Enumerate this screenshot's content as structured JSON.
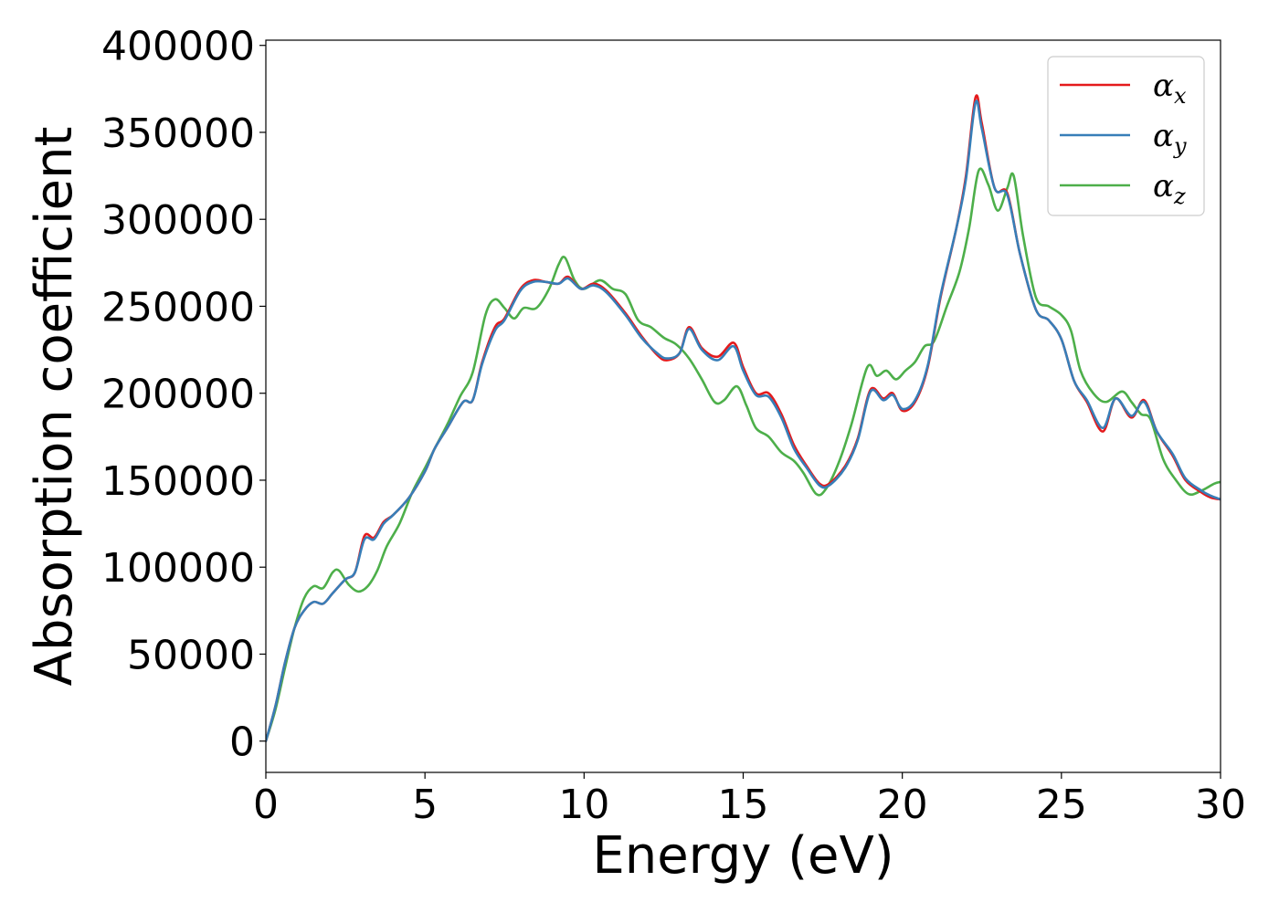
{
  "chart_data": {
    "type": "line",
    "xlabel": "Energy (eV)",
    "ylabel": "Absorption coefficient",
    "xlim": [
      0,
      30
    ],
    "ylim": [
      -18000,
      403000
    ],
    "xticks": [
      0,
      5,
      10,
      15,
      20,
      25,
      30
    ],
    "xtick_labels": [
      "0",
      "5",
      "10",
      "15",
      "20",
      "25",
      "30"
    ],
    "yticks": [
      0,
      50000,
      100000,
      150000,
      200000,
      250000,
      300000,
      350000,
      400000
    ],
    "ytick_labels": [
      "0",
      "50000",
      "100000",
      "150000",
      "200000",
      "250000",
      "300000",
      "350000",
      "400000"
    ],
    "grid": false,
    "legend_position": "top-right",
    "series": [
      {
        "name": "αx",
        "symbol": "α",
        "subscript": "x",
        "color": "#e41a1c",
        "points": [
          [
            0,
            0
          ],
          [
            0.3,
            20000
          ],
          [
            0.6,
            45000
          ],
          [
            0.9,
            65000
          ],
          [
            1.2,
            75000
          ],
          [
            1.5,
            80000
          ],
          [
            1.8,
            79000
          ],
          [
            2.1,
            85000
          ],
          [
            2.5,
            93000
          ],
          [
            2.8,
            97000
          ],
          [
            3.1,
            118000
          ],
          [
            3.4,
            117000
          ],
          [
            3.7,
            126000
          ],
          [
            4.0,
            130000
          ],
          [
            4.5,
            140000
          ],
          [
            5.0,
            155000
          ],
          [
            5.3,
            168000
          ],
          [
            5.7,
            180000
          ],
          [
            6.2,
            195000
          ],
          [
            6.5,
            196000
          ],
          [
            6.8,
            218000
          ],
          [
            7.2,
            238000
          ],
          [
            7.5,
            243000
          ],
          [
            8.0,
            260000
          ],
          [
            8.4,
            265000
          ],
          [
            8.8,
            264000
          ],
          [
            9.2,
            263000
          ],
          [
            9.5,
            267000
          ],
          [
            9.9,
            260000
          ],
          [
            10.3,
            263000
          ],
          [
            10.7,
            259000
          ],
          [
            11.3,
            246000
          ],
          [
            11.8,
            233000
          ],
          [
            12.3,
            222000
          ],
          [
            12.6,
            219000
          ],
          [
            13.0,
            223000
          ],
          [
            13.3,
            238000
          ],
          [
            13.7,
            226000
          ],
          [
            14.2,
            221000
          ],
          [
            14.7,
            229000
          ],
          [
            15.0,
            215000
          ],
          [
            15.4,
            200000
          ],
          [
            15.8,
            200000
          ],
          [
            16.2,
            188000
          ],
          [
            16.6,
            170000
          ],
          [
            17.0,
            158000
          ],
          [
            17.4,
            148000
          ],
          [
            17.7,
            148000
          ],
          [
            18.2,
            158000
          ],
          [
            18.6,
            174000
          ],
          [
            19.0,
            202000
          ],
          [
            19.4,
            197000
          ],
          [
            19.7,
            200000
          ],
          [
            20.0,
            190000
          ],
          [
            20.4,
            195000
          ],
          [
            20.8,
            215000
          ],
          [
            21.2,
            255000
          ],
          [
            21.7,
            295000
          ],
          [
            22.0,
            325000
          ],
          [
            22.3,
            370000
          ],
          [
            22.5,
            355000
          ],
          [
            22.9,
            318000
          ],
          [
            23.3,
            315000
          ],
          [
            23.7,
            280000
          ],
          [
            24.2,
            248000
          ],
          [
            24.6,
            242000
          ],
          [
            25.0,
            231000
          ],
          [
            25.4,
            207000
          ],
          [
            25.8,
            195000
          ],
          [
            26.3,
            178000
          ],
          [
            26.7,
            197000
          ],
          [
            27.2,
            186000
          ],
          [
            27.6,
            196000
          ],
          [
            28.0,
            178000
          ],
          [
            28.5,
            164000
          ],
          [
            28.9,
            150000
          ],
          [
            29.4,
            143000
          ],
          [
            29.7,
            140000
          ],
          [
            30,
            139000
          ]
        ]
      },
      {
        "name": "αy",
        "symbol": "α",
        "subscript": "y",
        "color": "#377eb8",
        "points": [
          [
            0,
            0
          ],
          [
            0.3,
            20000
          ],
          [
            0.6,
            45000
          ],
          [
            0.9,
            65000
          ],
          [
            1.2,
            75000
          ],
          [
            1.5,
            80000
          ],
          [
            1.8,
            79000
          ],
          [
            2.1,
            85000
          ],
          [
            2.5,
            93000
          ],
          [
            2.8,
            97000
          ],
          [
            3.1,
            116000
          ],
          [
            3.4,
            116000
          ],
          [
            3.7,
            125000
          ],
          [
            4.0,
            130000
          ],
          [
            4.5,
            140000
          ],
          [
            5.0,
            155000
          ],
          [
            5.3,
            168000
          ],
          [
            5.7,
            180000
          ],
          [
            6.2,
            195000
          ],
          [
            6.5,
            196000
          ],
          [
            6.8,
            217000
          ],
          [
            7.2,
            236000
          ],
          [
            7.5,
            242000
          ],
          [
            8.0,
            259000
          ],
          [
            8.4,
            264000
          ],
          [
            8.8,
            264000
          ],
          [
            9.2,
            263000
          ],
          [
            9.5,
            266000
          ],
          [
            9.9,
            260000
          ],
          [
            10.3,
            262000
          ],
          [
            10.7,
            258000
          ],
          [
            11.3,
            245000
          ],
          [
            11.8,
            232000
          ],
          [
            12.3,
            223000
          ],
          [
            12.6,
            220000
          ],
          [
            13.0,
            223000
          ],
          [
            13.3,
            237000
          ],
          [
            13.7,
            225000
          ],
          [
            14.2,
            219000
          ],
          [
            14.7,
            227000
          ],
          [
            15.0,
            213000
          ],
          [
            15.4,
            199000
          ],
          [
            15.8,
            198000
          ],
          [
            16.2,
            186000
          ],
          [
            16.6,
            168000
          ],
          [
            17.0,
            157000
          ],
          [
            17.4,
            147000
          ],
          [
            17.7,
            147000
          ],
          [
            18.2,
            157000
          ],
          [
            18.6,
            173000
          ],
          [
            19.0,
            201000
          ],
          [
            19.4,
            196000
          ],
          [
            19.7,
            199000
          ],
          [
            20.0,
            191000
          ],
          [
            20.4,
            196000
          ],
          [
            20.8,
            216000
          ],
          [
            21.2,
            256000
          ],
          [
            21.7,
            295000
          ],
          [
            22.0,
            323000
          ],
          [
            22.3,
            367000
          ],
          [
            22.5,
            352000
          ],
          [
            22.9,
            318000
          ],
          [
            23.3,
            314000
          ],
          [
            23.7,
            280000
          ],
          [
            24.2,
            248000
          ],
          [
            24.6,
            242000
          ],
          [
            25.0,
            231000
          ],
          [
            25.4,
            207000
          ],
          [
            25.8,
            196000
          ],
          [
            26.3,
            180000
          ],
          [
            26.7,
            197000
          ],
          [
            27.2,
            187000
          ],
          [
            27.6,
            195000
          ],
          [
            28.0,
            178000
          ],
          [
            28.5,
            165000
          ],
          [
            28.9,
            151000
          ],
          [
            29.4,
            144000
          ],
          [
            29.7,
            141000
          ],
          [
            30,
            139000
          ]
        ]
      },
      {
        "name": "αz",
        "symbol": "α",
        "subscript": "z",
        "color": "#4daf4a",
        "points": [
          [
            0,
            0
          ],
          [
            0.3,
            18000
          ],
          [
            0.6,
            42000
          ],
          [
            0.9,
            65000
          ],
          [
            1.2,
            82000
          ],
          [
            1.5,
            89000
          ],
          [
            1.8,
            88000
          ],
          [
            2.1,
            97000
          ],
          [
            2.3,
            98000
          ],
          [
            2.6,
            90000
          ],
          [
            2.9,
            86000
          ],
          [
            3.2,
            89000
          ],
          [
            3.5,
            98000
          ],
          [
            3.8,
            112000
          ],
          [
            4.2,
            125000
          ],
          [
            4.6,
            143000
          ],
          [
            5.0,
            157000
          ],
          [
            5.3,
            168000
          ],
          [
            5.7,
            182000
          ],
          [
            6.1,
            198000
          ],
          [
            6.5,
            212000
          ],
          [
            6.9,
            245000
          ],
          [
            7.2,
            254000
          ],
          [
            7.5,
            249000
          ],
          [
            7.8,
            243000
          ],
          [
            8.1,
            249000
          ],
          [
            8.5,
            249000
          ],
          [
            8.9,
            260000
          ],
          [
            9.2,
            274000
          ],
          [
            9.4,
            278000
          ],
          [
            9.7,
            265000
          ],
          [
            10.0,
            260000
          ],
          [
            10.5,
            265000
          ],
          [
            10.9,
            260000
          ],
          [
            11.3,
            257000
          ],
          [
            11.7,
            242000
          ],
          [
            12.1,
            238000
          ],
          [
            12.5,
            232000
          ],
          [
            12.9,
            228000
          ],
          [
            13.3,
            220000
          ],
          [
            13.7,
            208000
          ],
          [
            14.1,
            195000
          ],
          [
            14.4,
            196000
          ],
          [
            14.8,
            204000
          ],
          [
            15.1,
            193000
          ],
          [
            15.4,
            180000
          ],
          [
            15.8,
            175000
          ],
          [
            16.2,
            166000
          ],
          [
            16.6,
            161000
          ],
          [
            16.9,
            154000
          ],
          [
            17.3,
            142000
          ],
          [
            17.6,
            145000
          ],
          [
            18.0,
            160000
          ],
          [
            18.4,
            182000
          ],
          [
            18.9,
            215000
          ],
          [
            19.2,
            210000
          ],
          [
            19.5,
            213000
          ],
          [
            19.8,
            208000
          ],
          [
            20.1,
            213000
          ],
          [
            20.4,
            218000
          ],
          [
            20.7,
            227000
          ],
          [
            21.0,
            230000
          ],
          [
            21.4,
            250000
          ],
          [
            21.8,
            270000
          ],
          [
            22.1,
            295000
          ],
          [
            22.4,
            328000
          ],
          [
            22.7,
            320000
          ],
          [
            23.0,
            305000
          ],
          [
            23.3,
            318000
          ],
          [
            23.5,
            325000
          ],
          [
            23.8,
            290000
          ],
          [
            24.2,
            255000
          ],
          [
            24.6,
            250000
          ],
          [
            25.0,
            245000
          ],
          [
            25.3,
            236000
          ],
          [
            25.6,
            213000
          ],
          [
            26.0,
            200000
          ],
          [
            26.4,
            195000
          ],
          [
            26.9,
            201000
          ],
          [
            27.2,
            195000
          ],
          [
            27.5,
            188000
          ],
          [
            27.8,
            185000
          ],
          [
            28.2,
            162000
          ],
          [
            28.6,
            150000
          ],
          [
            29.0,
            142000
          ],
          [
            29.4,
            144000
          ],
          [
            29.8,
            148000
          ],
          [
            30,
            149000
          ]
        ]
      }
    ]
  }
}
